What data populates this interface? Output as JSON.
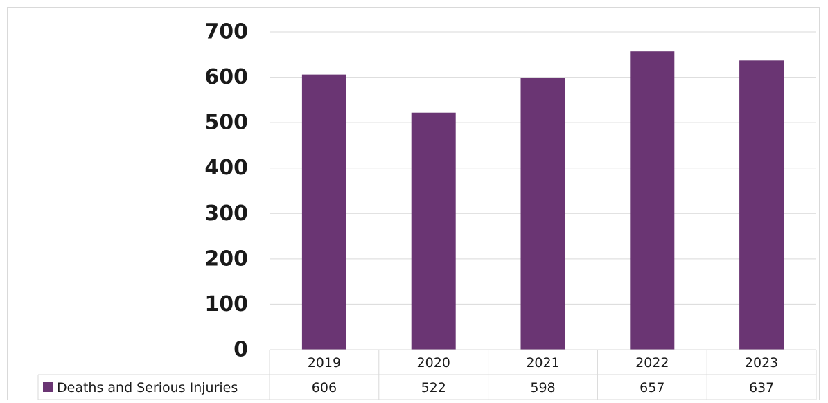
{
  "chart_data": {
    "type": "bar",
    "categories": [
      "2019",
      "2020",
      "2021",
      "2022",
      "2023"
    ],
    "series": [
      {
        "name": "Deaths and Serious Injuries",
        "values": [
          606,
          522,
          598,
          657,
          637
        ],
        "color": "#6a3573"
      }
    ],
    "title": "",
    "xlabel": "",
    "ylabel": "",
    "ylim": [
      0,
      700
    ],
    "yticks": [
      "0",
      "100",
      "200",
      "300",
      "400",
      "500",
      "600",
      "700"
    ],
    "table_labels": [
      "606",
      "522",
      "598",
      "657",
      "637"
    ],
    "grid": true,
    "legend": "data-table-left"
  }
}
